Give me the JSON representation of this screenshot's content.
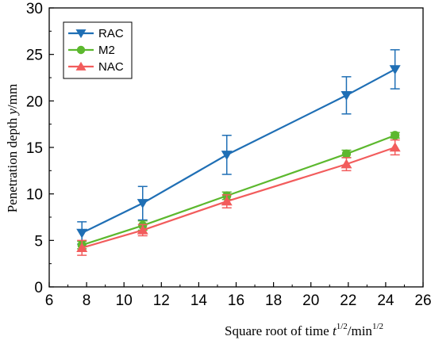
{
  "chart_data": {
    "type": "line",
    "x": [
      7.75,
      11.0,
      15.5,
      21.9,
      24.5
    ],
    "xlabel": {
      "main": "Square root of time ",
      "var": "t",
      "sup1": "1/2",
      "unit": "/min",
      "sup2": "1/2"
    },
    "ylabel": {
      "main": "Penetration depth ",
      "var": "y",
      "unit": "/mm"
    },
    "xlim": [
      6,
      26
    ],
    "ylim": [
      0,
      30
    ],
    "xticks": [
      6,
      8,
      10,
      12,
      14,
      16,
      18,
      20,
      22,
      24,
      26
    ],
    "yticks": [
      0,
      5,
      10,
      15,
      20,
      25,
      30
    ],
    "xtick_labels": [
      "6",
      "8",
      "10",
      "12",
      "14",
      "16",
      "18",
      "20",
      "22",
      "24",
      "26"
    ],
    "ytick_labels": [
      "0",
      "5",
      "10",
      "15",
      "20",
      "25",
      "30"
    ],
    "grid": false,
    "legend_position": "top-left",
    "series": [
      {
        "name": "RAC",
        "marker": "triangle-down",
        "color": "#1f6fb5",
        "values": [
          5.8,
          9.0,
          14.2,
          20.6,
          23.4
        ],
        "errors": [
          1.2,
          1.8,
          2.1,
          2.0,
          2.1
        ]
      },
      {
        "name": "M2",
        "marker": "circle",
        "color": "#5cb82e",
        "values": [
          4.5,
          6.6,
          9.8,
          14.3,
          16.3
        ],
        "errors": [
          0.4,
          0.5,
          0.4,
          0.4,
          0.3
        ]
      },
      {
        "name": "NAC",
        "marker": "triangle-up",
        "color": "#f25c5c",
        "values": [
          4.2,
          6.1,
          9.2,
          13.2,
          15.0
        ],
        "errors": [
          0.8,
          0.6,
          0.7,
          0.7,
          0.8
        ]
      }
    ]
  }
}
